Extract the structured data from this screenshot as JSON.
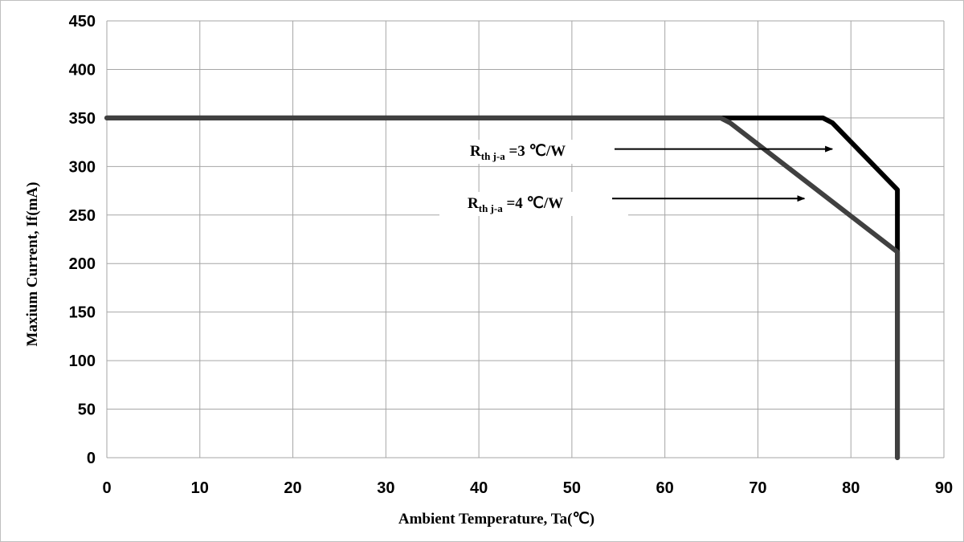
{
  "chart_data": {
    "type": "line",
    "title": "",
    "xlabel": "Ambient Temperature,  Ta(℃)",
    "ylabel": "Maxium Current,  If(mA)",
    "xlim": [
      0,
      90
    ],
    "ylim": [
      0,
      450
    ],
    "x_ticks": [
      "0",
      "10",
      "20",
      "30",
      "40",
      "50",
      "60",
      "70",
      "80",
      "90"
    ],
    "y_ticks": [
      "0",
      "50",
      "100",
      "150",
      "200",
      "250",
      "300",
      "350",
      "400",
      "450"
    ],
    "grid": true,
    "series": [
      {
        "name": "Rth j-a =3 ℃/W",
        "color": "#000000",
        "points": [
          [
            0,
            350
          ],
          [
            77,
            350
          ],
          [
            78,
            345
          ],
          [
            85,
            276
          ],
          [
            85,
            0
          ]
        ]
      },
      {
        "name": "Rth j-a =4 ℃/W",
        "color": "#404040",
        "points": [
          [
            0,
            350
          ],
          [
            66,
            350
          ],
          [
            67,
            345
          ],
          [
            85,
            212
          ],
          [
            85,
            0
          ]
        ]
      }
    ],
    "annotations": [
      {
        "main": "R",
        "sub": "th j-a",
        "rest": " =3 ℃/W",
        "arrow_target": [
          78,
          318
        ]
      },
      {
        "main": "R",
        "sub": "th j-a",
        "rest": " =4 ℃/W",
        "arrow_target": [
          75,
          267
        ]
      }
    ]
  }
}
